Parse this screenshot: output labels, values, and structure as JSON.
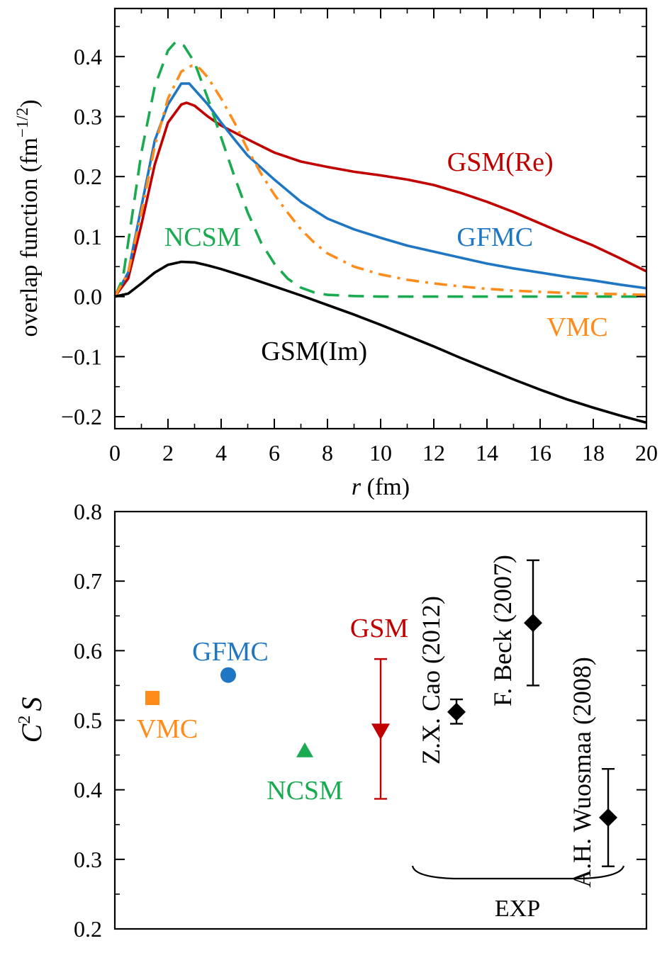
{
  "colors": {
    "gsm_re": "#c00000",
    "gfmc": "#1f77c4",
    "ncsm": "#1aaa50",
    "vmc": "#ff8c1a",
    "gsm_im": "#000000",
    "axis": "#000000"
  },
  "chart_data": [
    {
      "type": "line",
      "xlabel_italic": "r",
      "xlabel_unit": "(fm)",
      "ylabel_text": "overlap function (fm",
      "ylabel_sup": "−1/2",
      "ylabel_close": ")",
      "xlim": [
        0,
        20
      ],
      "ylim": [
        -0.22,
        0.48
      ],
      "x_ticks": [
        0,
        2,
        4,
        6,
        8,
        10,
        12,
        14,
        16,
        18,
        20
      ],
      "x_tick_labels": [
        "0",
        "2",
        "4",
        "6",
        "8",
        "10",
        "12",
        "14",
        "16",
        "18",
        "20"
      ],
      "y_ticks": [
        -0.2,
        -0.1,
        0.0,
        0.1,
        0.2,
        0.3,
        0.4
      ],
      "y_tick_labels": [
        "−0.2",
        "−0.1",
        "0.0",
        "0.1",
        "0.2",
        "0.3",
        "0.4"
      ],
      "series": [
        {
          "name": "GSM(Re)",
          "color_key": "gsm_re",
          "style": "solid",
          "label_pos": [
            14.5,
            0.225
          ],
          "points": [
            [
              0,
              0
            ],
            [
              0.5,
              0.03
            ],
            [
              1,
              0.12
            ],
            [
              1.5,
              0.22
            ],
            [
              2,
              0.29
            ],
            [
              2.5,
              0.32
            ],
            [
              2.7,
              0.323
            ],
            [
              3,
              0.318
            ],
            [
              3.5,
              0.3
            ],
            [
              4,
              0.285
            ],
            [
              5,
              0.262
            ],
            [
              6,
              0.24
            ],
            [
              7,
              0.225
            ],
            [
              8,
              0.216
            ],
            [
              9,
              0.208
            ],
            [
              10,
              0.202
            ],
            [
              11,
              0.195
            ],
            [
              12,
              0.186
            ],
            [
              13,
              0.173
            ],
            [
              14,
              0.158
            ],
            [
              15,
              0.141
            ],
            [
              16,
              0.122
            ],
            [
              17,
              0.103
            ],
            [
              18,
              0.085
            ],
            [
              19,
              0.064
            ],
            [
              20,
              0.042
            ]
          ]
        },
        {
          "name": "GFMC",
          "color_key": "gfmc",
          "style": "solid",
          "label_pos": [
            14.3,
            0.1
          ],
          "points": [
            [
              0,
              0
            ],
            [
              0.5,
              0.04
            ],
            [
              1,
              0.15
            ],
            [
              1.5,
              0.26
            ],
            [
              2,
              0.32
            ],
            [
              2.5,
              0.355
            ],
            [
              2.8,
              0.355
            ],
            [
              3,
              0.345
            ],
            [
              3.5,
              0.32
            ],
            [
              4,
              0.29
            ],
            [
              4.5,
              0.262
            ],
            [
              5,
              0.235
            ],
            [
              6,
              0.195
            ],
            [
              7,
              0.158
            ],
            [
              8,
              0.13
            ],
            [
              9,
              0.112
            ],
            [
              10,
              0.098
            ],
            [
              11,
              0.085
            ],
            [
              12,
              0.075
            ],
            [
              13,
              0.065
            ],
            [
              14,
              0.055
            ],
            [
              15,
              0.047
            ],
            [
              16,
              0.04
            ],
            [
              17,
              0.033
            ],
            [
              18,
              0.027
            ],
            [
              19,
              0.02
            ],
            [
              20,
              0.014
            ]
          ]
        },
        {
          "name": "NCSM",
          "color_key": "ncsm",
          "style": "dashed",
          "label_pos": [
            3.3,
            0.1
          ],
          "points": [
            [
              0,
              0
            ],
            [
              0.3,
              0.03
            ],
            [
              0.7,
              0.15
            ],
            [
              1,
              0.24
            ],
            [
              1.5,
              0.35
            ],
            [
              2,
              0.41
            ],
            [
              2.3,
              0.425
            ],
            [
              2.6,
              0.418
            ],
            [
              3,
              0.39
            ],
            [
              3.5,
              0.33
            ],
            [
              4,
              0.265
            ],
            [
              4.5,
              0.2
            ],
            [
              5,
              0.14
            ],
            [
              5.5,
              0.09
            ],
            [
              6,
              0.055
            ],
            [
              6.5,
              0.03
            ],
            [
              7,
              0.015
            ],
            [
              7.5,
              0.007
            ],
            [
              8,
              0.003
            ],
            [
              9,
              0.001
            ],
            [
              10,
              0
            ],
            [
              12,
              0
            ],
            [
              14,
              0
            ],
            [
              16,
              0
            ],
            [
              18,
              0
            ],
            [
              20,
              0
            ]
          ]
        },
        {
          "name": "VMC",
          "color_key": "vmc",
          "style": "dashdot",
          "label_pos": [
            17.4,
            -0.05
          ],
          "points": [
            [
              0,
              0
            ],
            [
              0.5,
              0.04
            ],
            [
              1,
              0.14
            ],
            [
              1.5,
              0.25
            ],
            [
              2,
              0.33
            ],
            [
              2.5,
              0.375
            ],
            [
              2.9,
              0.385
            ],
            [
              3.2,
              0.38
            ],
            [
              3.5,
              0.365
            ],
            [
              4,
              0.33
            ],
            [
              4.5,
              0.29
            ],
            [
              5,
              0.245
            ],
            [
              5.5,
              0.205
            ],
            [
              6,
              0.17
            ],
            [
              6.5,
              0.14
            ],
            [
              7,
              0.112
            ],
            [
              7.5,
              0.09
            ],
            [
              8,
              0.072
            ],
            [
              9,
              0.05
            ],
            [
              10,
              0.037
            ],
            [
              11,
              0.028
            ],
            [
              12,
              0.022
            ],
            [
              13,
              0.017
            ],
            [
              14,
              0.013
            ],
            [
              15,
              0.01
            ],
            [
              16,
              0.008
            ],
            [
              17,
              0.006
            ],
            [
              18,
              0.005
            ],
            [
              19,
              0.004
            ],
            [
              20,
              0.003
            ]
          ]
        },
        {
          "name": "GSM(Im)",
          "color_key": "gsm_im",
          "style": "solid",
          "label_pos": [
            7.5,
            -0.09
          ],
          "points": [
            [
              0,
              0
            ],
            [
              0.5,
              0.005
            ],
            [
              1,
              0.022
            ],
            [
              1.5,
              0.04
            ],
            [
              2,
              0.053
            ],
            [
              2.5,
              0.058
            ],
            [
              3,
              0.057
            ],
            [
              3.5,
              0.052
            ],
            [
              4,
              0.046
            ],
            [
              5,
              0.032
            ],
            [
              6,
              0.017
            ],
            [
              7,
              0.002
            ],
            [
              8,
              -0.014
            ],
            [
              9,
              -0.03
            ],
            [
              10,
              -0.047
            ],
            [
              11,
              -0.065
            ],
            [
              12,
              -0.083
            ],
            [
              13,
              -0.102
            ],
            [
              14,
              -0.12
            ],
            [
              15,
              -0.138
            ],
            [
              16,
              -0.155
            ],
            [
              17,
              -0.171
            ],
            [
              18,
              -0.185
            ],
            [
              19,
              -0.198
            ],
            [
              20,
              -0.21
            ]
          ]
        }
      ]
    },
    {
      "type": "scatter",
      "ylabel_main": "C",
      "ylabel_sup": "2",
      "ylabel_tail": "S",
      "ylim": [
        0.2,
        0.8
      ],
      "y_ticks": [
        0.2,
        0.3,
        0.4,
        0.5,
        0.6,
        0.7,
        0.8
      ],
      "y_tick_labels": [
        "0.2",
        "0.3",
        "0.4",
        "0.5",
        "0.6",
        "0.7",
        "0.8"
      ],
      "points": [
        {
          "name": "VMC",
          "value": 0.532,
          "marker": "square",
          "color_key": "vmc",
          "label": "VMC"
        },
        {
          "name": "GFMC",
          "value": 0.565,
          "marker": "circle",
          "color_key": "gfmc",
          "label": "GFMC"
        },
        {
          "name": "NCSM",
          "value": 0.456,
          "marker": "triangle-up",
          "color_key": "ncsm",
          "label": "NCSM"
        },
        {
          "name": "GSM",
          "value": 0.485,
          "err_low": 0.387,
          "err_high": 0.588,
          "marker": "triangle-down",
          "color_key": "gsm_re",
          "label": "GSM"
        },
        {
          "name": "Z.X. Cao (2012)",
          "value": 0.512,
          "err_low": 0.495,
          "err_high": 0.53,
          "marker": "diamond",
          "color_key": "gsm_im",
          "label": "Z.X. Cao (2012)"
        },
        {
          "name": "F. Beck (2007)",
          "value": 0.64,
          "err_low": 0.55,
          "err_high": 0.73,
          "marker": "diamond",
          "color_key": "gsm_im",
          "label": "F. Beck (2007)"
        },
        {
          "name": "A.H. Wuosmaa (2008)",
          "value": 0.36,
          "err_low": 0.29,
          "err_high": 0.43,
          "marker": "diamond",
          "color_key": "gsm_im",
          "label": "A.H. Wuosmaa (2008)"
        }
      ],
      "group_label": "EXP"
    }
  ]
}
